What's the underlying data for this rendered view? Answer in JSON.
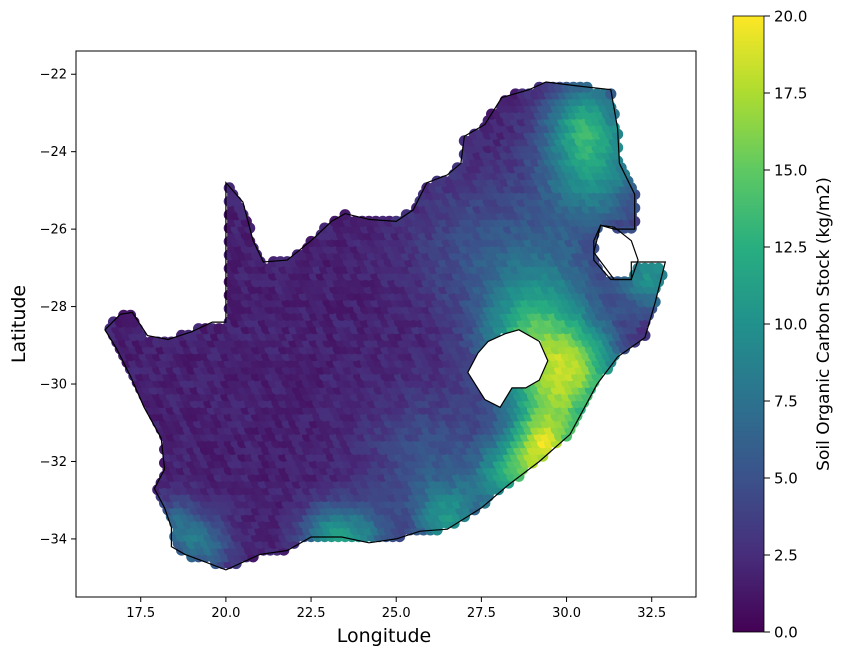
{
  "chart_data": {
    "type": "scatter",
    "title": "",
    "xlabel": "Longitude",
    "ylabel": "Latitude",
    "xlim": [
      15.6,
      33.8
    ],
    "ylim": [
      -35.5,
      -21.4
    ],
    "xticks": [
      "17.5",
      "20.0",
      "22.5",
      "25.0",
      "27.5",
      "30.0",
      "32.5"
    ],
    "yticks": [
      "−22",
      "−24",
      "−26",
      "−28",
      "−30",
      "−32",
      "−34"
    ],
    "colorbar": {
      "label": "Soil Organic Carbon Stock (kg/m2)",
      "min": 0.0,
      "max": 20.0,
      "ticks": [
        "0.0",
        "2.5",
        "5.0",
        "7.5",
        "10.0",
        "12.5",
        "15.0",
        "17.5",
        "20.0"
      ],
      "colormap": "viridis"
    },
    "boundary": [
      [
        16.45,
        -28.6
      ],
      [
        16.9,
        -28.2
      ],
      [
        17.25,
        -28.15
      ],
      [
        17.7,
        -28.75
      ],
      [
        18.3,
        -28.85
      ],
      [
        19.0,
        -28.65
      ],
      [
        19.6,
        -28.4
      ],
      [
        20.0,
        -28.4
      ],
      [
        20.0,
        -24.8
      ],
      [
        20.5,
        -25.3
      ],
      [
        20.8,
        -26.3
      ],
      [
        21.1,
        -26.85
      ],
      [
        21.8,
        -26.8
      ],
      [
        22.5,
        -26.3
      ],
      [
        23.1,
        -25.8
      ],
      [
        23.5,
        -25.6
      ],
      [
        24.2,
        -25.75
      ],
      [
        25.0,
        -25.8
      ],
      [
        25.5,
        -25.5
      ],
      [
        25.9,
        -24.8
      ],
      [
        26.5,
        -24.6
      ],
      [
        26.9,
        -24.3
      ],
      [
        27.0,
        -23.6
      ],
      [
        27.6,
        -23.3
      ],
      [
        28.1,
        -22.6
      ],
      [
        28.9,
        -22.4
      ],
      [
        29.4,
        -22.2
      ],
      [
        30.3,
        -22.3
      ],
      [
        31.3,
        -22.4
      ],
      [
        31.5,
        -23.4
      ],
      [
        31.55,
        -24.3
      ],
      [
        32.0,
        -25.1
      ],
      [
        32.0,
        -26.0
      ],
      [
        31.4,
        -26.0
      ],
      [
        31.0,
        -25.9
      ],
      [
        30.8,
        -26.6
      ],
      [
        31.4,
        -27.3
      ],
      [
        31.9,
        -27.3
      ],
      [
        31.9,
        -26.85
      ],
      [
        32.9,
        -26.85
      ],
      [
        32.6,
        -27.9
      ],
      [
        32.3,
        -28.8
      ],
      [
        31.5,
        -29.3
      ],
      [
        30.9,
        -30.0
      ],
      [
        30.1,
        -31.3
      ],
      [
        29.2,
        -32.0
      ],
      [
        28.3,
        -32.6
      ],
      [
        27.5,
        -33.2
      ],
      [
        26.5,
        -33.75
      ],
      [
        25.7,
        -33.8
      ],
      [
        25.0,
        -34.0
      ],
      [
        24.2,
        -34.1
      ],
      [
        23.4,
        -33.95
      ],
      [
        22.5,
        -33.95
      ],
      [
        21.8,
        -34.3
      ],
      [
        21.0,
        -34.4
      ],
      [
        20.0,
        -34.8
      ],
      [
        19.4,
        -34.6
      ],
      [
        18.8,
        -34.4
      ],
      [
        18.4,
        -34.2
      ],
      [
        18.4,
        -33.7
      ],
      [
        18.2,
        -33.2
      ],
      [
        17.9,
        -32.7
      ],
      [
        18.2,
        -32.2
      ],
      [
        18.1,
        -31.4
      ],
      [
        17.6,
        -30.6
      ],
      [
        17.2,
        -29.8
      ],
      [
        16.8,
        -29.1
      ]
    ],
    "lesotho": [
      [
        28.6,
        -28.6
      ],
      [
        29.2,
        -28.9
      ],
      [
        29.45,
        -29.4
      ],
      [
        29.2,
        -29.9
      ],
      [
        28.8,
        -30.1
      ],
      [
        28.4,
        -30.1
      ],
      [
        28.05,
        -30.6
      ],
      [
        27.6,
        -30.4
      ],
      [
        27.1,
        -29.7
      ],
      [
        27.4,
        -29.2
      ],
      [
        27.7,
        -28.9
      ],
      [
        28.2,
        -28.7
      ]
    ],
    "eswatini": [
      [
        31.0,
        -25.9
      ],
      [
        31.4,
        -25.95
      ],
      [
        31.9,
        -26.3
      ],
      [
        32.1,
        -26.8
      ],
      [
        31.9,
        -27.3
      ],
      [
        31.3,
        -27.3
      ],
      [
        30.8,
        -26.8
      ],
      [
        30.8,
        -26.3
      ]
    ],
    "hotspots": [
      {
        "lon": 29.0,
        "lat": -29.0,
        "value": 14.0,
        "radius": 1.4
      },
      {
        "lon": 29.8,
        "lat": -30.6,
        "value": 13.5,
        "radius": 1.3
      },
      {
        "lon": 30.6,
        "lat": -29.4,
        "value": 12.0,
        "radius": 1.1
      },
      {
        "lon": 29.3,
        "lat": -31.7,
        "value": 15.5,
        "radius": 0.9
      },
      {
        "lon": 28.3,
        "lat": -32.4,
        "value": 12.0,
        "radius": 1.0
      },
      {
        "lon": 30.8,
        "lat": -24.3,
        "value": 13.0,
        "radius": 1.5
      },
      {
        "lon": 30.5,
        "lat": -23.0,
        "value": 9.5,
        "radius": 1.0
      },
      {
        "lon": 32.5,
        "lat": -27.2,
        "value": 12.0,
        "radius": 0.9
      },
      {
        "lon": 26.5,
        "lat": -33.5,
        "value": 10.5,
        "radius": 0.9
      },
      {
        "lon": 24.0,
        "lat": -33.9,
        "value": 9.0,
        "radius": 0.8
      },
      {
        "lon": 23.0,
        "lat": -33.9,
        "value": 11.0,
        "radius": 0.8
      },
      {
        "lon": 19.4,
        "lat": -34.1,
        "value": 8.5,
        "radius": 0.8
      },
      {
        "lon": 18.5,
        "lat": -33.6,
        "value": 7.5,
        "radius": 0.7
      },
      {
        "lon": 27.5,
        "lat": -26.5,
        "value": 5.5,
        "radius": 2.0
      },
      {
        "lon": 29.5,
        "lat": -27.5,
        "value": 7.5,
        "radius": 1.6
      },
      {
        "lon": 26.0,
        "lat": -32.0,
        "value": 6.0,
        "radius": 1.8
      }
    ],
    "base_value": 1.8
  }
}
